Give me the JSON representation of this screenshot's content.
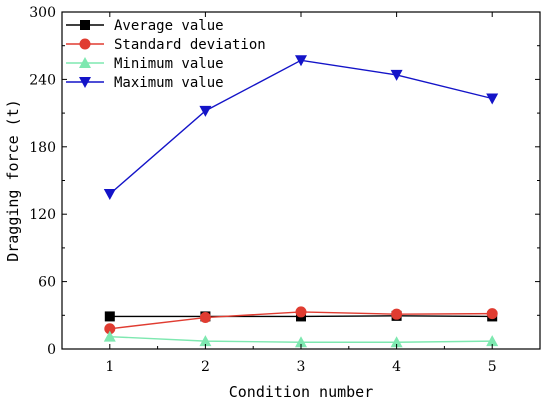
{
  "chart_data": {
    "type": "line",
    "xlabel": "Condition number",
    "ylabel": "Dragging force (t)",
    "categories": [
      "1",
      "2",
      "3",
      "4",
      "5"
    ],
    "x": [
      1,
      2,
      3,
      4,
      5
    ],
    "xlim": [
      0.5,
      5.5
    ],
    "ylim": [
      0,
      300
    ],
    "yticks": [
      0,
      60,
      120,
      180,
      240,
      300
    ],
    "ytick_labels": [
      "0",
      "60",
      "120",
      "180",
      "240",
      "300"
    ],
    "grid": false,
    "legend_position": "top-left",
    "series": [
      {
        "name": "Average value",
        "color": "#000000",
        "marker": "square",
        "values": [
          29,
          29,
          29,
          29.5,
          29
        ]
      },
      {
        "name": "Standard deviation",
        "color": "#e03c31",
        "marker": "circle",
        "values": [
          18,
          28,
          33,
          31,
          31.5
        ]
      },
      {
        "name": "Minimum value",
        "color": "#7ee8b0",
        "marker": "triangle-up",
        "values": [
          11,
          7,
          6,
          6,
          7
        ]
      },
      {
        "name": "Maximum value",
        "color": "#1414c8",
        "marker": "triangle-down",
        "values": [
          138,
          212,
          257,
          244,
          223
        ]
      }
    ]
  }
}
